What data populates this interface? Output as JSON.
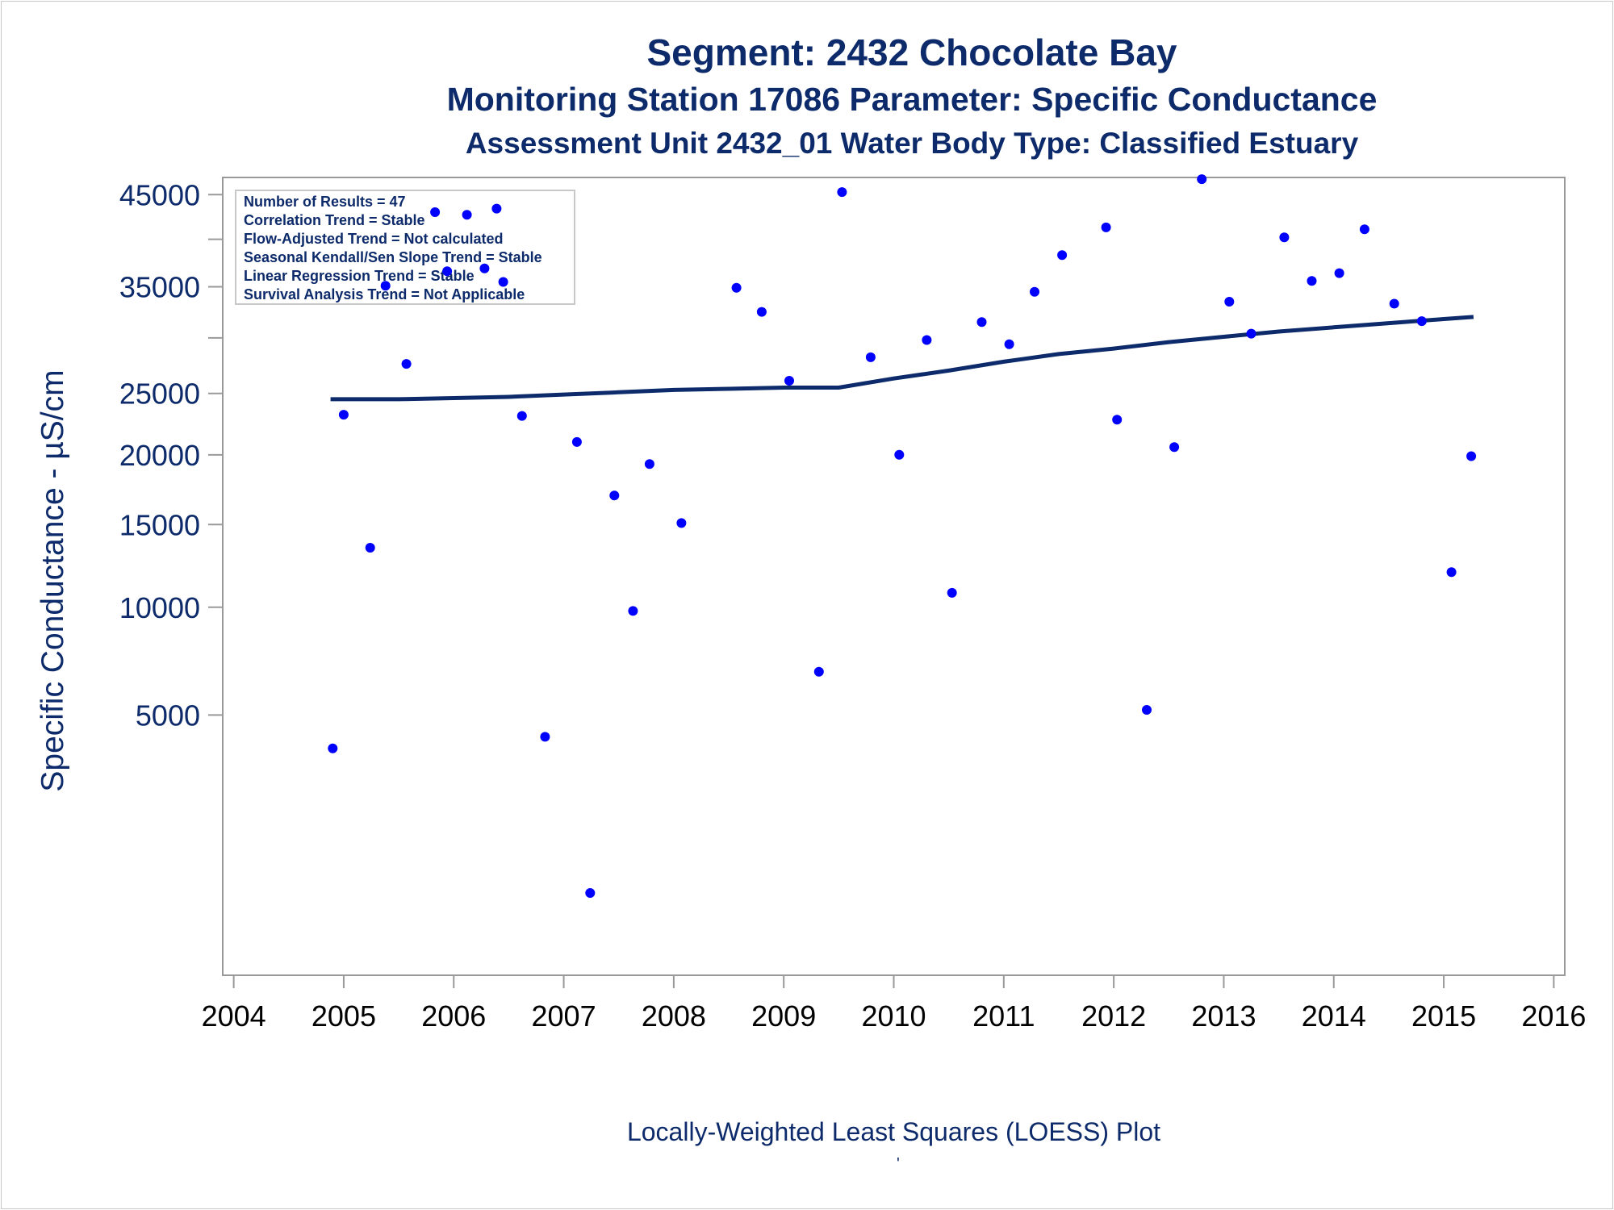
{
  "titles": {
    "line1": "Segment: 2432  Chocolate Bay",
    "line2": "Monitoring Station 17086 Parameter: Specific Conductance",
    "line3": "Assessment Unit 2432_01   Water Body Type: Classified Estuary"
  },
  "inset": {
    "lines": [
      "Number of Results = 47",
      "Correlation Trend = Stable",
      "Flow-Adjusted Trend = Not calculated",
      "Seasonal Kendall/Sen Slope Trend = Stable",
      "Linear Regression Trend = Stable",
      "Survival Analysis Trend = Not Applicable"
    ]
  },
  "footer_mark": "'",
  "colors": {
    "text": "#0d2a6b",
    "points": "#0000ff",
    "line": "#0d2a6b",
    "frame": "#999999"
  },
  "chart_data": {
    "type": "scatter",
    "title": "Segment: 2432  Chocolate Bay",
    "xlabel": "Locally-Weighted Least Squares (LOESS) Plot",
    "ylabel": "Specific Conductance -  µS/cm",
    "y_scale": "sqrt",
    "xlim": [
      2003.9,
      2016.1
    ],
    "ylim": [
      0,
      47000
    ],
    "x_ticks": [
      2004,
      2005,
      2006,
      2007,
      2008,
      2009,
      2010,
      2011,
      2012,
      2013,
      2014,
      2015,
      2016
    ],
    "y_ticks": [
      {
        "value": 5000,
        "label": "5000"
      },
      {
        "value": 10000,
        "label": "10000"
      },
      {
        "value": 15000,
        "label": "15000"
      },
      {
        "value": 20000,
        "label": "20000"
      },
      {
        "value": 25000,
        "label": "25000"
      },
      {
        "value": 30000,
        "label": ""
      },
      {
        "value": 35000,
        "label": "35000"
      },
      {
        "value": 40000,
        "label": ""
      },
      {
        "value": 45000,
        "label": "45000"
      }
    ],
    "grid": false,
    "legend": "inset top-left",
    "series": [
      {
        "kind": "scatter",
        "points": [
          [
            2004.9,
            3800
          ],
          [
            2005.0,
            23200
          ],
          [
            2005.24,
            13500
          ],
          [
            2005.38,
            35100
          ],
          [
            2005.57,
            27600
          ],
          [
            2005.83,
            43000
          ],
          [
            2005.94,
            36600
          ],
          [
            2006.12,
            42700
          ],
          [
            2006.28,
            36900
          ],
          [
            2006.39,
            43400
          ],
          [
            2006.45,
            35500
          ],
          [
            2006.62,
            23100
          ],
          [
            2006.83,
            4200
          ],
          [
            2007.12,
            21000
          ],
          [
            2007.24,
            500
          ],
          [
            2007.46,
            17000
          ],
          [
            2007.63,
            9800
          ],
          [
            2007.78,
            19300
          ],
          [
            2008.07,
            15100
          ],
          [
            2008.57,
            34900
          ],
          [
            2008.8,
            32500
          ],
          [
            2009.05,
            26100
          ],
          [
            2009.32,
            6800
          ],
          [
            2009.53,
            45300
          ],
          [
            2009.79,
            28200
          ],
          [
            2010.05,
            20000
          ],
          [
            2010.3,
            29800
          ],
          [
            2010.53,
            10800
          ],
          [
            2010.8,
            31500
          ],
          [
            2011.05,
            29400
          ],
          [
            2011.28,
            34500
          ],
          [
            2011.53,
            38300
          ],
          [
            2011.93,
            41300
          ],
          [
            2012.03,
            22800
          ],
          [
            2012.3,
            5200
          ],
          [
            2012.55,
            20600
          ],
          [
            2012.8,
            46800
          ],
          [
            2013.05,
            33500
          ],
          [
            2013.25,
            30400
          ],
          [
            2013.55,
            40200
          ],
          [
            2013.8,
            35600
          ],
          [
            2014.05,
            36400
          ],
          [
            2014.28,
            41100
          ],
          [
            2014.55,
            33300
          ],
          [
            2014.8,
            31600
          ],
          [
            2015.07,
            12000
          ],
          [
            2015.25,
            19900
          ]
        ]
      },
      {
        "kind": "line",
        "points": [
          [
            2004.88,
            24500
          ],
          [
            2005.5,
            24500
          ],
          [
            2006.0,
            24600
          ],
          [
            2006.5,
            24700
          ],
          [
            2007.0,
            24900
          ],
          [
            2007.5,
            25100
          ],
          [
            2008.0,
            25300
          ],
          [
            2008.5,
            25400
          ],
          [
            2009.0,
            25500
          ],
          [
            2009.5,
            25500
          ],
          [
            2010.0,
            26300
          ],
          [
            2010.5,
            27000
          ],
          [
            2011.0,
            27800
          ],
          [
            2011.5,
            28500
          ],
          [
            2012.0,
            29000
          ],
          [
            2012.5,
            29600
          ],
          [
            2013.0,
            30100
          ],
          [
            2013.5,
            30600
          ],
          [
            2014.0,
            31000
          ],
          [
            2014.5,
            31400
          ],
          [
            2015.0,
            31800
          ],
          [
            2015.27,
            32000
          ]
        ]
      }
    ]
  }
}
